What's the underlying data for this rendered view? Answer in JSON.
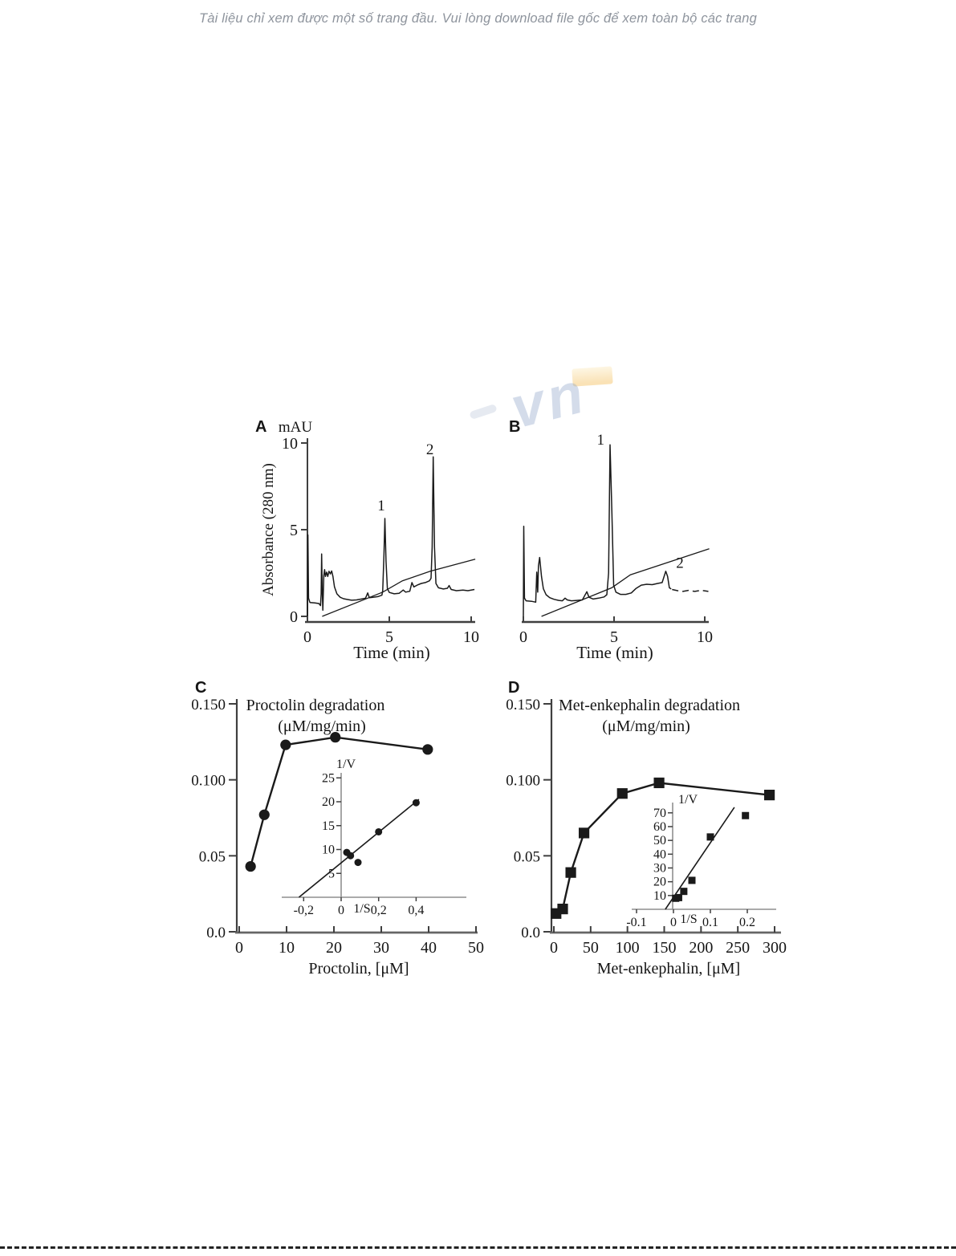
{
  "watermarks": {
    "top_text": "Tài liệu chỉ xem được một số trang đầu. Vui lòng download file gốc để xem toàn bộ các trang",
    "logo_text": "vn"
  },
  "colors": {
    "trace": "#1a1a1a",
    "axis": "#3f3f3f",
    "axis_gray": "#666666",
    "inset_axis": "#8f8f8f",
    "watermark_text": "#8e949d",
    "watermark_blue": "#8fa6c9",
    "watermark_yellow": "#f9dfae"
  },
  "chart_data": [
    {
      "id": "A",
      "type": "line",
      "kind": "chromatogram",
      "panel_label": "A",
      "unit_label": "mAU",
      "ylabel": "Absorbance (280 nm)",
      "xlabel": "Time (min)",
      "xlim": [
        0,
        10.3
      ],
      "ylim": [
        0,
        10
      ],
      "x_ticks": [
        {
          "v": 0,
          "label": "0"
        },
        {
          "v": 5,
          "label": "5"
        },
        {
          "v": 10,
          "label": "10"
        }
      ],
      "y_ticks": [
        {
          "v": 0,
          "label": "0"
        },
        {
          "v": 5,
          "label": "5"
        },
        {
          "v": 10,
          "label": "10"
        }
      ],
      "peak_labels": [
        {
          "text": "1",
          "x": 4.28,
          "y": 6.1
        },
        {
          "text": "2",
          "x": 7.25,
          "y": 9.35
        }
      ],
      "trace": [
        [
          0,
          0
        ],
        [
          0.03,
          4.7
        ],
        [
          0.07,
          1.05
        ],
        [
          0.15,
          0.8
        ],
        [
          0.45,
          0.78
        ],
        [
          0.7,
          0.74
        ],
        [
          0.8,
          0.62
        ],
        [
          0.84,
          1.3
        ],
        [
          0.87,
          3.6
        ],
        [
          0.9,
          1.6
        ],
        [
          0.94,
          0.35
        ],
        [
          1.0,
          2.35
        ],
        [
          1.05,
          2.7
        ],
        [
          1.1,
          2.3
        ],
        [
          1.17,
          2.55
        ],
        [
          1.24,
          2.3
        ],
        [
          1.32,
          2.6
        ],
        [
          1.4,
          2.45
        ],
        [
          1.48,
          2.62
        ],
        [
          1.56,
          2.3
        ],
        [
          1.65,
          1.7
        ],
        [
          1.8,
          1.3
        ],
        [
          2.0,
          1.1
        ],
        [
          2.2,
          1.02
        ],
        [
          2.45,
          0.97
        ],
        [
          2.7,
          0.93
        ],
        [
          3.0,
          0.95
        ],
        [
          3.3,
          1.0
        ],
        [
          3.55,
          1.05
        ],
        [
          3.68,
          1.35
        ],
        [
          3.78,
          1.08
        ],
        [
          4.0,
          1.1
        ],
        [
          4.3,
          1.14
        ],
        [
          4.55,
          1.22
        ],
        [
          4.6,
          1.5
        ],
        [
          4.67,
          3.5
        ],
        [
          4.73,
          5.65
        ],
        [
          4.8,
          3.2
        ],
        [
          4.88,
          1.6
        ],
        [
          5.0,
          1.38
        ],
        [
          5.3,
          1.3
        ],
        [
          5.6,
          1.33
        ],
        [
          5.85,
          1.52
        ],
        [
          6.0,
          1.4
        ],
        [
          6.25,
          1.45
        ],
        [
          6.38,
          1.95
        ],
        [
          6.5,
          1.7
        ],
        [
          6.7,
          1.8
        ],
        [
          6.95,
          1.9
        ],
        [
          7.2,
          1.95
        ],
        [
          7.45,
          2.05
        ],
        [
          7.55,
          2.2
        ],
        [
          7.62,
          4.0
        ],
        [
          7.68,
          9.2
        ],
        [
          7.76,
          4.0
        ],
        [
          7.85,
          1.9
        ],
        [
          8.0,
          1.65
        ],
        [
          8.3,
          1.58
        ],
        [
          8.55,
          1.62
        ],
        [
          8.65,
          1.78
        ],
        [
          8.78,
          1.55
        ],
        [
          9.1,
          1.48
        ],
        [
          9.5,
          1.52
        ],
        [
          9.8,
          1.48
        ],
        [
          10.2,
          1.55
        ]
      ],
      "gradient_line": [
        [
          0.9,
          0
        ],
        [
          4.6,
          1.4
        ],
        [
          5.8,
          2.05
        ],
        [
          7.5,
          2.6
        ],
        [
          10.25,
          3.3
        ]
      ]
    },
    {
      "id": "B",
      "type": "line",
      "kind": "chromatogram",
      "panel_label": "B",
      "xlabel": "Time (min)",
      "xlim": [
        0,
        10.3
      ],
      "ylim": [
        0,
        10
      ],
      "x_ticks": [
        {
          "v": 0,
          "label": "0"
        },
        {
          "v": 5,
          "label": "5"
        },
        {
          "v": 10,
          "label": "10"
        }
      ],
      "peak_labels": [
        {
          "text": "1",
          "x": 4.05,
          "y": 9.9
        },
        {
          "text": "2",
          "x": 8.42,
          "y": 2.8
        }
      ],
      "trace": [
        [
          0,
          0
        ],
        [
          0.02,
          5.2
        ],
        [
          0.06,
          1.05
        ],
        [
          0.15,
          0.9
        ],
        [
          0.45,
          0.87
        ],
        [
          0.68,
          0.82
        ],
        [
          0.74,
          2.55
        ],
        [
          0.79,
          1.4
        ],
        [
          0.83,
          2.9
        ],
        [
          0.9,
          3.4
        ],
        [
          1.0,
          2.3
        ],
        [
          1.1,
          1.6
        ],
        [
          1.25,
          1.25
        ],
        [
          1.45,
          1.08
        ],
        [
          1.7,
          0.98
        ],
        [
          1.95,
          0.92
        ],
        [
          2.15,
          0.9
        ],
        [
          2.3,
          1.05
        ],
        [
          2.42,
          0.95
        ],
        [
          2.65,
          0.9
        ],
        [
          2.95,
          0.92
        ],
        [
          3.25,
          0.95
        ],
        [
          3.5,
          1.42
        ],
        [
          3.62,
          1.1
        ],
        [
          3.85,
          1.0
        ],
        [
          4.15,
          1.05
        ],
        [
          4.45,
          1.12
        ],
        [
          4.6,
          1.25
        ],
        [
          4.7,
          2.5
        ],
        [
          4.78,
          9.9
        ],
        [
          4.88,
          6.0
        ],
        [
          4.98,
          1.8
        ],
        [
          5.1,
          1.4
        ],
        [
          5.35,
          1.27
        ],
        [
          5.65,
          1.27
        ],
        [
          5.95,
          1.35
        ],
        [
          6.2,
          1.6
        ],
        [
          6.5,
          1.8
        ],
        [
          6.8,
          1.85
        ],
        [
          7.1,
          1.83
        ],
        [
          7.4,
          1.9
        ],
        [
          7.65,
          1.95
        ],
        [
          7.85,
          2.6
        ],
        [
          7.95,
          2.3
        ],
        [
          8.05,
          1.65
        ],
        [
          8.15,
          1.58
        ]
      ],
      "trace_dashed": [
        [
          8.2,
          1.55
        ],
        [
          8.5,
          1.48
        ],
        [
          8.8,
          1.44
        ],
        [
          9.1,
          1.5
        ],
        [
          9.45,
          1.44
        ],
        [
          9.8,
          1.5
        ],
        [
          10.2,
          1.44
        ]
      ],
      "gradient_line": [
        [
          1.0,
          0
        ],
        [
          4.87,
          1.65
        ],
        [
          5.9,
          2.4
        ],
        [
          10.25,
          3.9
        ]
      ]
    },
    {
      "id": "C",
      "type": "scatter",
      "kind": "kinetics",
      "panel_label": "C",
      "title_lines": [
        "Proctolin degradation",
        "(μM/mg/min)"
      ],
      "xlabel": "Proctolin, [μM]",
      "marker": "circle",
      "xlim": [
        0,
        51
      ],
      "ylim": [
        0,
        0.15
      ],
      "x_ticks": [
        {
          "v": 0,
          "label": "0"
        },
        {
          "v": 10,
          "label": "10"
        },
        {
          "v": 20,
          "label": "20"
        },
        {
          "v": 30,
          "label": "30"
        },
        {
          "v": 40,
          "label": "40"
        },
        {
          "v": 50,
          "label": "50"
        }
      ],
      "y_ticks": [
        {
          "v": 0,
          "label": "0.0"
        },
        {
          "v": 0.05,
          "label": "0.05"
        },
        {
          "v": 0.1,
          "label": "0.100"
        },
        {
          "v": 0.15,
          "label": "0.150"
        }
      ],
      "points": [
        [
          2.4,
          0.043
        ],
        [
          5.3,
          0.077
        ],
        [
          9.8,
          0.123
        ],
        [
          20.3,
          0.128
        ],
        [
          39.8,
          0.12
        ]
      ],
      "inset": {
        "ylabel": "1/V",
        "xlabel": "1/S",
        "xlim": [
          -0.31,
          0.66
        ],
        "ylim": [
          0,
          26
        ],
        "x_ticks": [
          {
            "v": -0.2,
            "label": "-0,2"
          },
          {
            "v": 0,
            "label": "0"
          },
          {
            "v": 0.2,
            "label": "0,2"
          },
          {
            "v": 0.4,
            "label": "0,4"
          }
        ],
        "y_ticks": [
          {
            "v": 5,
            "label": "5"
          },
          {
            "v": 10,
            "label": "10"
          },
          {
            "v": 15,
            "label": "15"
          },
          {
            "v": 20,
            "label": "20"
          },
          {
            "v": 25,
            "label": "25"
          }
        ],
        "points": [
          [
            0.03,
            9.4
          ],
          [
            0.05,
            8.7
          ],
          [
            0.09,
            7.3
          ],
          [
            0.2,
            13.7
          ],
          [
            0.4,
            19.8
          ]
        ],
        "fit_line": [
          [
            -0.225,
            0
          ],
          [
            0.415,
            20.5
          ]
        ]
      }
    },
    {
      "id": "D",
      "type": "scatter",
      "kind": "kinetics",
      "panel_label": "D",
      "title_lines": [
        "Met-enkephalin degradation",
        "(μM/mg/min)"
      ],
      "xlabel": "Met-enkephalin, [μM]",
      "marker": "square",
      "xlim": [
        0,
        305
      ],
      "ylim": [
        0,
        0.15
      ],
      "x_ticks": [
        {
          "v": 0,
          "label": "0"
        },
        {
          "v": 50,
          "label": "50"
        },
        {
          "v": 100,
          "label": "100"
        },
        {
          "v": 150,
          "label": "150"
        },
        {
          "v": 200,
          "label": "200"
        },
        {
          "v": 250,
          "label": "250"
        },
        {
          "v": 300,
          "label": "300"
        }
      ],
      "y_ticks": [
        {
          "v": 0,
          "label": "0.0"
        },
        {
          "v": 0.05,
          "label": "0.05"
        },
        {
          "v": 0.1,
          "label": "0.100"
        },
        {
          "v": 0.15,
          "label": "0.150"
        }
      ],
      "points": [
        [
          3,
          0.012
        ],
        [
          12,
          0.015
        ],
        [
          23,
          0.039
        ],
        [
          41,
          0.065
        ],
        [
          93,
          0.091
        ],
        [
          143,
          0.098
        ],
        [
          293,
          0.09
        ]
      ],
      "inset": {
        "ylabel": "1/V",
        "xlabel": "1/S",
        "xlim": [
          -0.13,
          0.28
        ],
        "ylim": [
          0,
          76
        ],
        "x_ticks": [
          {
            "v": -0.1,
            "label": "-0.1"
          },
          {
            "v": 0,
            "label": "0"
          },
          {
            "v": 0.1,
            "label": "0.1"
          },
          {
            "v": 0.2,
            "label": "0.2"
          }
        ],
        "y_ticks": [
          {
            "v": 10,
            "label": "10"
          },
          {
            "v": 20,
            "label": "20"
          },
          {
            "v": 30,
            "label": "30"
          },
          {
            "v": 40,
            "label": "40"
          },
          {
            "v": 50,
            "label": "50"
          },
          {
            "v": 60,
            "label": "60"
          },
          {
            "v": 70,
            "label": "70"
          }
        ],
        "points": [
          [
            0.006,
            8
          ],
          [
            0.014,
            8.5
          ],
          [
            0.028,
            13
          ],
          [
            0.05,
            21
          ],
          [
            0.1,
            52.5
          ],
          [
            0.195,
            68
          ]
        ],
        "fit_line": [
          [
            -0.022,
            0
          ],
          [
            0.165,
            74
          ]
        ]
      }
    }
  ]
}
